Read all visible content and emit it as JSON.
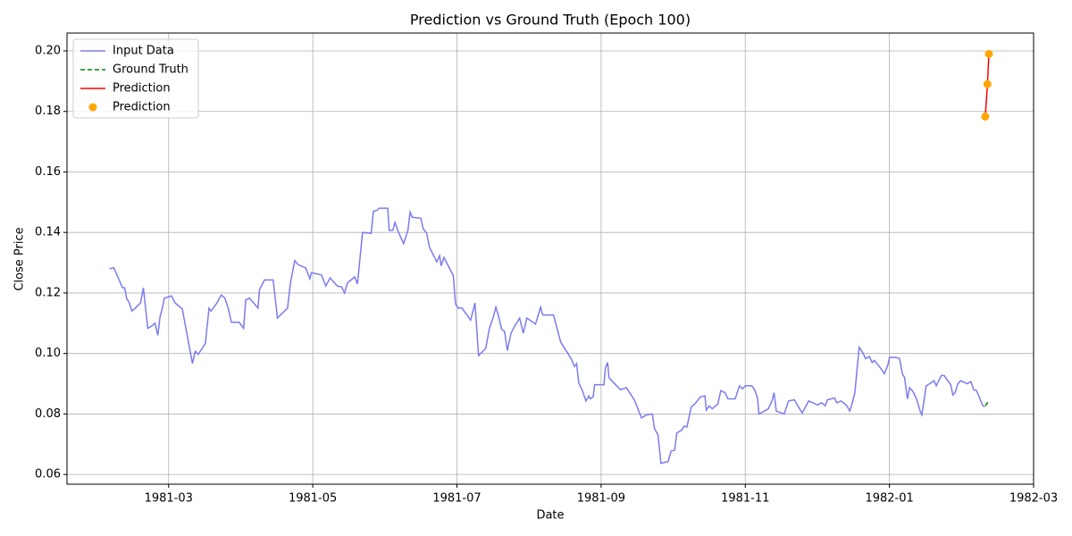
{
  "chart_data": {
    "type": "line",
    "title": "Prediction vs Ground Truth (Epoch 100)",
    "xlabel": "Date",
    "ylabel": "Close Price",
    "xlim": [
      0.59,
      14.0
    ],
    "xticks": [
      {
        "value": 2,
        "label": "1981-03"
      },
      {
        "value": 4,
        "label": "1981-05"
      },
      {
        "value": 6,
        "label": "1981-07"
      },
      {
        "value": 8,
        "label": "1981-09"
      },
      {
        "value": 10,
        "label": "1981-11"
      },
      {
        "value": 12,
        "label": "1982-01"
      },
      {
        "value": 14,
        "label": "1982-03"
      }
    ],
    "ylim": [
      0.0568,
      0.2059
    ],
    "yticks": [
      0.06,
      0.08,
      {
        "value": 0.1,
        "label": "0.10"
      },
      0.12,
      0.14,
      0.16,
      0.18,
      {
        "value": 0.2,
        "label": "0.20"
      }
    ],
    "grid": true,
    "legend": "upper left",
    "series": [
      {
        "name": "Input Data",
        "color": "#7b7bf0",
        "style": "solid",
        "marker": false,
        "x": [
          1.18,
          1.24,
          1.36,
          1.39,
          1.42,
          1.45,
          1.49,
          1.54,
          1.61,
          1.65,
          1.71,
          1.76,
          1.81,
          1.85,
          1.88,
          1.91,
          1.94,
          2.04,
          2.09,
          2.19,
          2.26,
          2.33,
          2.37,
          2.41,
          2.51,
          2.56,
          2.59,
          2.67,
          2.73,
          2.78,
          2.83,
          2.87,
          2.98,
          3.04,
          3.07,
          3.12,
          3.18,
          3.24,
          3.26,
          3.33,
          3.45,
          3.51,
          3.65,
          3.69,
          3.75,
          3.8,
          3.9,
          3.96,
          3.98,
          4.12,
          4.18,
          4.24,
          4.34,
          4.4,
          4.44,
          4.48,
          4.58,
          4.62,
          4.69,
          4.81,
          4.84,
          4.89,
          4.92,
          5.04,
          5.06,
          5.11,
          5.14,
          5.19,
          5.26,
          5.32,
          5.35,
          5.38,
          5.5,
          5.53,
          5.58,
          5.62,
          5.72,
          5.76,
          5.78,
          5.82,
          5.95,
          5.98,
          6.02,
          6.07,
          6.19,
          6.25,
          6.3,
          6.4,
          6.45,
          6.5,
          6.54,
          6.57,
          6.62,
          6.66,
          6.7,
          6.75,
          6.8,
          6.87,
          6.92,
          6.97,
          7.09,
          7.16,
          7.19,
          7.34,
          7.4,
          7.44,
          7.54,
          7.59,
          7.63,
          7.66,
          7.69,
          7.74,
          7.79,
          7.83,
          7.85,
          7.89,
          7.91,
          8.04,
          8.06,
          8.09,
          8.11,
          8.16,
          8.27,
          8.35,
          8.46,
          8.56,
          8.63,
          8.71,
          8.74,
          8.79,
          8.83,
          8.93,
          8.97,
          9.02,
          9.05,
          9.12,
          9.15,
          9.19,
          9.23,
          9.25,
          9.3,
          9.38,
          9.44,
          9.46,
          9.5,
          9.54,
          9.62,
          9.66,
          9.72,
          9.76,
          9.86,
          9.92,
          9.96,
          10.0,
          10.09,
          10.13,
          10.17,
          10.19,
          10.32,
          10.37,
          10.4,
          10.43,
          10.54,
          10.6,
          10.68,
          10.79,
          10.88,
          10.94,
          11.0,
          11.06,
          11.11,
          11.14,
          11.24,
          11.27,
          11.33,
          11.4,
          11.45,
          11.48,
          11.52,
          11.58,
          11.63,
          11.67,
          11.72,
          11.76,
          11.79,
          11.86,
          11.93,
          11.98,
          12.0,
          12.09,
          12.14,
          12.18,
          12.21,
          12.25,
          12.28,
          12.33,
          12.38,
          12.43,
          12.45,
          12.51,
          12.56,
          12.62,
          12.65,
          12.69,
          12.72,
          12.76,
          12.85,
          12.88,
          12.91,
          12.95,
          12.99,
          13.08,
          13.13,
          13.17,
          13.21,
          13.29,
          13.32
        ],
        "values": [
          0.128,
          0.1283,
          0.1217,
          0.1217,
          0.118,
          0.117,
          0.114,
          0.115,
          0.1167,
          0.1217,
          0.1083,
          0.109,
          0.11,
          0.106,
          0.112,
          0.1147,
          0.1183,
          0.119,
          0.1167,
          0.1147,
          0.1057,
          0.0967,
          0.1007,
          0.0997,
          0.1033,
          0.115,
          0.114,
          0.1167,
          0.1193,
          0.1183,
          0.1147,
          0.1103,
          0.1103,
          0.1083,
          0.1177,
          0.1183,
          0.1167,
          0.115,
          0.121,
          0.1243,
          0.1243,
          0.1117,
          0.115,
          0.1233,
          0.1307,
          0.1293,
          0.1283,
          0.1247,
          0.1267,
          0.126,
          0.1223,
          0.125,
          0.1223,
          0.122,
          0.12,
          0.1233,
          0.1253,
          0.123,
          0.14,
          0.1397,
          0.147,
          0.1473,
          0.148,
          0.148,
          0.1407,
          0.1407,
          0.1433,
          0.14,
          0.1363,
          0.1407,
          0.1467,
          0.145,
          0.1447,
          0.1413,
          0.1397,
          0.135,
          0.1303,
          0.1323,
          0.129,
          0.1317,
          0.1257,
          0.1163,
          0.115,
          0.115,
          0.111,
          0.1167,
          0.0993,
          0.1017,
          0.1083,
          0.1117,
          0.1153,
          0.113,
          0.108,
          0.1073,
          0.101,
          0.1067,
          0.109,
          0.1117,
          0.1067,
          0.1117,
          0.1097,
          0.1153,
          0.1127,
          0.1127,
          0.1073,
          0.1037,
          0.1,
          0.098,
          0.0957,
          0.0967,
          0.0903,
          0.0877,
          0.0843,
          0.086,
          0.085,
          0.0857,
          0.0897,
          0.0897,
          0.0953,
          0.097,
          0.092,
          0.0907,
          0.088,
          0.0887,
          0.0847,
          0.0787,
          0.0797,
          0.08,
          0.0753,
          0.073,
          0.0637,
          0.0643,
          0.0677,
          0.068,
          0.0737,
          0.0747,
          0.076,
          0.0757,
          0.08,
          0.0823,
          0.0833,
          0.0857,
          0.086,
          0.0813,
          0.0827,
          0.0817,
          0.0833,
          0.0877,
          0.087,
          0.085,
          0.085,
          0.0893,
          0.0883,
          0.0893,
          0.0893,
          0.088,
          0.0853,
          0.08,
          0.0817,
          0.0843,
          0.087,
          0.081,
          0.08,
          0.0843,
          0.0847,
          0.0803,
          0.0843,
          0.0837,
          0.083,
          0.0837,
          0.0827,
          0.0847,
          0.0853,
          0.0837,
          0.0843,
          0.083,
          0.081,
          0.0833,
          0.087,
          0.102,
          0.1003,
          0.0983,
          0.099,
          0.097,
          0.0977,
          0.0957,
          0.0933,
          0.0963,
          0.0987,
          0.0987,
          0.0983,
          0.0933,
          0.092,
          0.085,
          0.0887,
          0.0873,
          0.0847,
          0.0807,
          0.0797,
          0.0893,
          0.09,
          0.091,
          0.0893,
          0.0913,
          0.0927,
          0.0927,
          0.0897,
          0.0863,
          0.087,
          0.09,
          0.091,
          0.09,
          0.0907,
          0.088,
          0.0877,
          0.083,
          0.0823
        ]
      },
      {
        "name": "Ground Truth",
        "color": "green",
        "style": "dashed",
        "marker": false,
        "x": [
          13.33,
          13.36,
          13.38
        ],
        "values": [
          0.0827,
          0.0837,
          0.083
        ]
      },
      {
        "name": "Prediction",
        "color": "red",
        "style": "solid",
        "marker": false,
        "x": [
          13.33,
          13.36,
          13.38
        ],
        "values": [
          0.1783,
          0.189,
          0.199
        ]
      },
      {
        "name": "Prediction",
        "color": "orange",
        "style": "none",
        "marker": true,
        "x": [
          13.33,
          13.36,
          13.38
        ],
        "values": [
          0.1783,
          0.189,
          0.199
        ]
      }
    ]
  }
}
